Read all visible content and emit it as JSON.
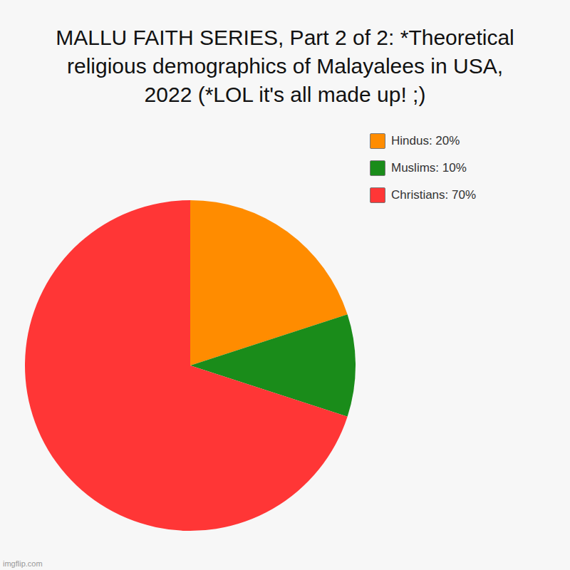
{
  "chart_data": {
    "type": "pie",
    "title": "MALLU FAITH SERIES, Part 2 of 2: *Theoretical religious demographics of Malayalees in USA, 2022 (*LOL it's all made up! ;)",
    "categories": [
      "Hindus: 20%",
      "Muslims: 10%",
      "Christians: 70%"
    ],
    "values": [
      20,
      10,
      70
    ],
    "colors": [
      "#ff8c00",
      "#1a8c1a",
      "#ff3636"
    ],
    "legend": "right",
    "annotations": [
      "imgflip.com"
    ]
  }
}
